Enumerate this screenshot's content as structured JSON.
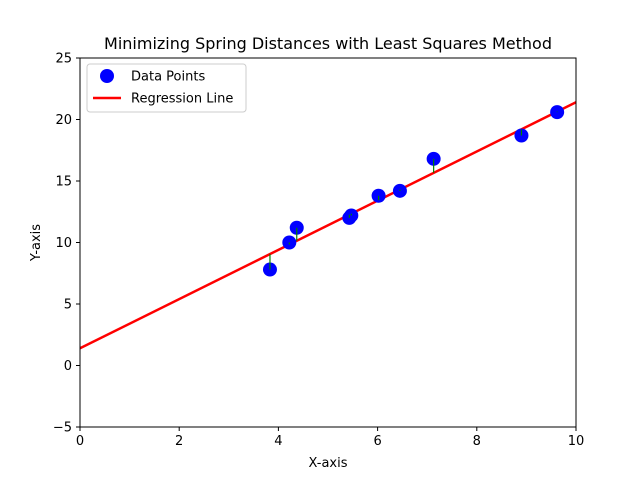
{
  "chart_data": {
    "type": "scatter",
    "title": "Minimizing Spring Distances with Least Squares Method",
    "xlabel": "X-axis",
    "ylabel": "Y-axis",
    "xlim": [
      0,
      10
    ],
    "ylim": [
      -5,
      25
    ],
    "xticks": [
      0,
      2,
      4,
      6,
      8,
      10
    ],
    "yticks": [
      -5,
      0,
      5,
      10,
      15,
      20,
      25
    ],
    "grid": false,
    "legend": {
      "placement": "top-left",
      "entries": [
        "Data Points",
        "Regression Line"
      ]
    },
    "series": [
      {
        "name": "Data Points",
        "kind": "scatter",
        "color": "#0000ff",
        "points": [
          {
            "x": 3.83,
            "y": 7.8
          },
          {
            "x": 4.22,
            "y": 10.0
          },
          {
            "x": 4.37,
            "y": 11.2
          },
          {
            "x": 5.43,
            "y": 12.0
          },
          {
            "x": 5.47,
            "y": 12.2
          },
          {
            "x": 6.02,
            "y": 13.8
          },
          {
            "x": 6.45,
            "y": 14.2
          },
          {
            "x": 7.13,
            "y": 16.8
          },
          {
            "x": 8.9,
            "y": 18.7
          },
          {
            "x": 9.62,
            "y": 20.6
          }
        ]
      },
      {
        "name": "Regression Line",
        "kind": "line",
        "color": "#ff0000",
        "intercept": 1.4,
        "slope": 2.0
      }
    ],
    "springs": {
      "color": "#008000",
      "description_hidden": true
    }
  }
}
